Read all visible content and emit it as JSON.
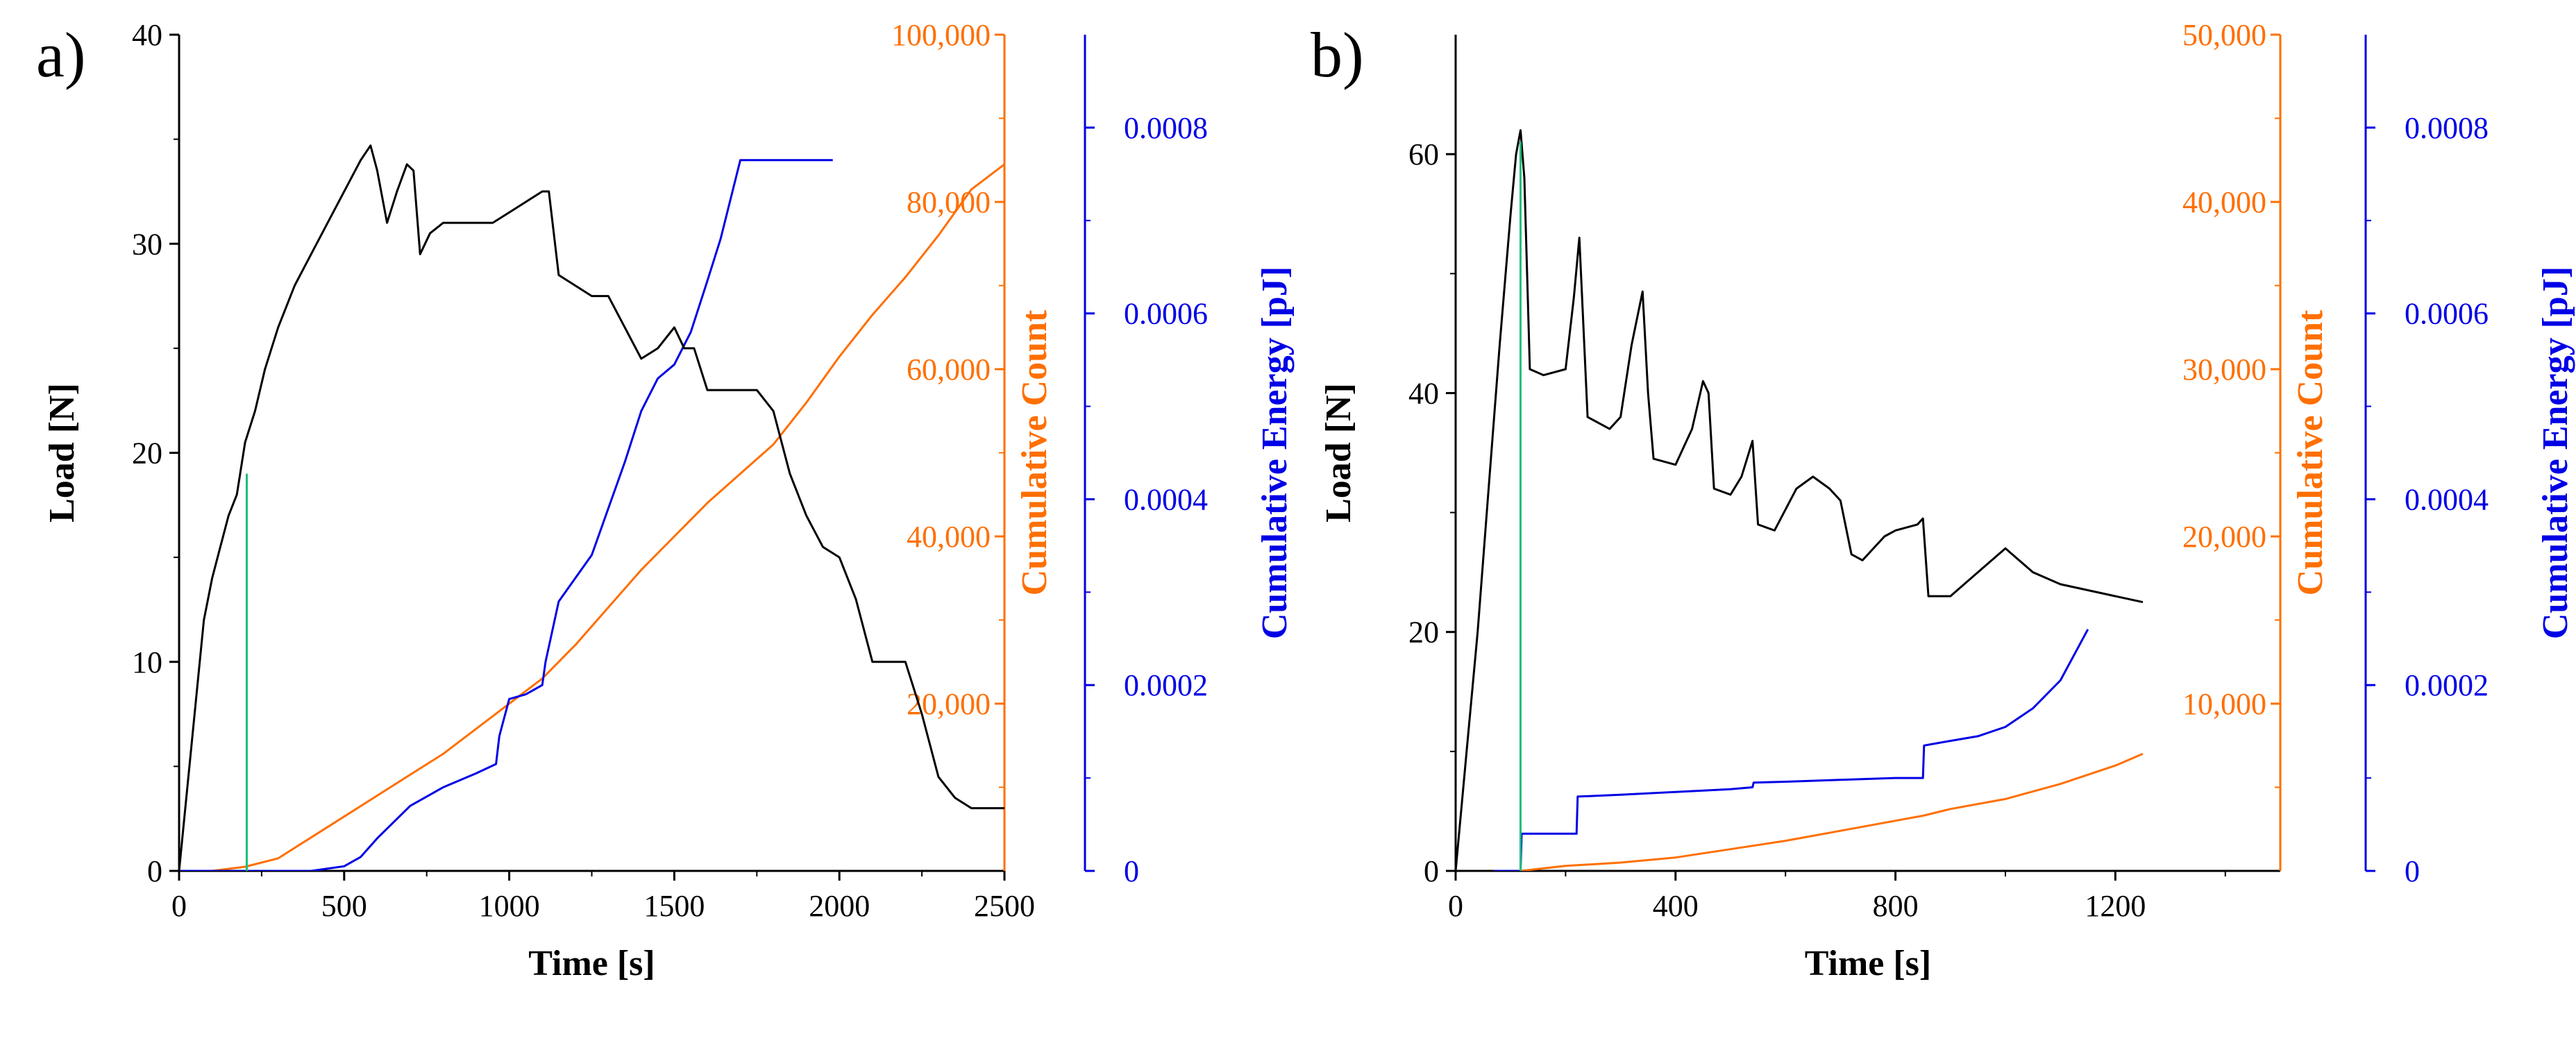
{
  "colors": {
    "load": "#000000",
    "count": "#FF6F00",
    "energy": "#0000E6",
    "onset": "#1BBE7A",
    "axes": "#000000"
  },
  "chart_data": [
    {
      "panel": "a)",
      "type": "line",
      "xlabel": "Time [s]",
      "ylabel_left": "Load [N]",
      "ylabel_right1": "Cumulative Count",
      "ylabel_right2": "Cumulative Energy [pJ]",
      "xlim": [
        0,
        2500
      ],
      "ylim_load": [
        0,
        40
      ],
      "ylim_count": [
        0,
        100000
      ],
      "ylim_energy": [
        0,
        0.0009
      ],
      "x_ticks": [
        "0",
        "500",
        "1000",
        "1500",
        "2000",
        "2500"
      ],
      "load_ticks": [
        "0",
        "10",
        "20",
        "30",
        "40"
      ],
      "count_ticks": [
        "20,000",
        "40,000",
        "60,000",
        "80,000",
        "100,000"
      ],
      "energy_ticks": [
        "0",
        "0.0002",
        "0.0004",
        "0.0006",
        "0.0008"
      ],
      "x_tick_values": [
        0,
        500,
        1000,
        1500,
        2000,
        2500
      ],
      "load_tick_values": [
        0,
        10,
        20,
        30,
        40
      ],
      "count_tick_values": [
        20000,
        40000,
        60000,
        80000,
        100000
      ],
      "energy_tick_values": [
        0,
        0.0002,
        0.0004,
        0.0006,
        0.0008
      ],
      "onset_line": {
        "x": 205,
        "y": 19
      },
      "series": [
        {
          "name": "Load",
          "axis": "load",
          "x": [
            0,
            25,
            50,
            75,
            100,
            125,
            150,
            175,
            200,
            230,
            260,
            300,
            350,
            400,
            450,
            500,
            550,
            580,
            600,
            630,
            660,
            690,
            710,
            730,
            760,
            800,
            850,
            900,
            950,
            1000,
            1050,
            1100,
            1120,
            1150,
            1200,
            1250,
            1300,
            1350,
            1400,
            1450,
            1500,
            1530,
            1560,
            1600,
            1650,
            1700,
            1750,
            1800,
            1850,
            1900,
            1950,
            2000,
            2050,
            2100,
            2150,
            2200,
            2250,
            2300,
            2350,
            2400,
            2450,
            2500
          ],
          "y": [
            0,
            4,
            8,
            12,
            14,
            15.5,
            17,
            18,
            20.5,
            22,
            24,
            26,
            28,
            29.5,
            31,
            32.5,
            34,
            34.7,
            33.5,
            31,
            32.5,
            33.8,
            33.5,
            29.5,
            30.5,
            31,
            31,
            31,
            31,
            31.5,
            32,
            32.5,
            32.5,
            28.5,
            28,
            27.5,
            27.5,
            26,
            24.5,
            25,
            26,
            25,
            25,
            23,
            23,
            23,
            23,
            22,
            19,
            17,
            15.5,
            15,
            13,
            10,
            10,
            10,
            7.5,
            4.5,
            3.5,
            3,
            3,
            3
          ]
        },
        {
          "name": "Cumulative Count",
          "axis": "count",
          "x": [
            0,
            100,
            200,
            300,
            400,
            500,
            600,
            700,
            800,
            900,
            1000,
            1100,
            1200,
            1300,
            1400,
            1500,
            1600,
            1700,
            1800,
            1900,
            2000,
            2100,
            2200,
            2300,
            2400,
            2500
          ],
          "y": [
            0,
            0,
            500,
            1500,
            4000,
            6500,
            9000,
            11500,
            14000,
            17000,
            20000,
            23000,
            27000,
            31500,
            36000,
            40000,
            44000,
            47500,
            51000,
            56000,
            61500,
            66500,
            71000,
            76000,
            81500,
            84500
          ]
        },
        {
          "name": "Cumulative Energy",
          "axis": "energy",
          "x": [
            0,
            300,
            400,
            500,
            550,
            600,
            700,
            800,
            900,
            960,
            970,
            1000,
            1050,
            1100,
            1110,
            1150,
            1200,
            1250,
            1300,
            1350,
            1400,
            1450,
            1500,
            1550,
            1600,
            1640,
            1700,
            1750,
            1800,
            1900,
            1980
          ],
          "y": [
            0,
            0,
            0,
            5e-06,
            1.5e-05,
            3.5e-05,
            7e-05,
            9e-05,
            0.000105,
            0.000115,
            0.000145,
            0.000185,
            0.00019,
            0.0002,
            0.000225,
            0.00029,
            0.000315,
            0.00034,
            0.00039,
            0.00044,
            0.000495,
            0.00053,
            0.000545,
            0.00058,
            0.000635,
            0.00068,
            0.000765,
            0.000765,
            0.000765,
            0.000765,
            0.000765
          ]
        }
      ]
    },
    {
      "panel": "b)",
      "type": "line",
      "xlabel": "Time [s]",
      "ylabel_left": "Load [N]",
      "ylabel_right1": "Cumulative Count",
      "ylabel_right2": "Cumulative Energy [pJ]",
      "xlim": [
        0,
        1500
      ],
      "ylim_load": [
        0,
        70
      ],
      "ylim_count": [
        0,
        50000
      ],
      "ylim_energy": [
        0,
        0.0009
      ],
      "x_ticks": [
        "0",
        "400",
        "800",
        "1200"
      ],
      "load_ticks": [
        "0",
        "20",
        "40",
        "60"
      ],
      "count_ticks": [
        "10,000",
        "20,000",
        "30,000",
        "40,000",
        "50,000"
      ],
      "energy_ticks": [
        "0",
        "0.0002",
        "0.0004",
        "0.0006",
        "0.0008"
      ],
      "x_tick_values": [
        0,
        400,
        800,
        1200
      ],
      "load_tick_values": [
        0,
        20,
        40,
        60
      ],
      "count_tick_values": [
        10000,
        20000,
        30000,
        40000,
        50000
      ],
      "energy_tick_values": [
        0,
        0.0002,
        0.0004,
        0.0006,
        0.0008
      ],
      "onset_line": {
        "x": 118,
        "y": 61
      },
      "series": [
        {
          "name": "Load",
          "axis": "load",
          "x": [
            0,
            20,
            40,
            60,
            80,
            100,
            110,
            118,
            125,
            135,
            160,
            200,
            215,
            225,
            240,
            280,
            300,
            320,
            340,
            350,
            360,
            400,
            430,
            450,
            460,
            470,
            500,
            520,
            540,
            550,
            580,
            620,
            650,
            680,
            700,
            720,
            740,
            780,
            800,
            840,
            850,
            860,
            900,
            950,
            1000,
            1050,
            1100,
            1150,
            1200,
            1250
          ],
          "y": [
            0,
            10,
            20,
            32,
            44,
            55,
            60,
            62,
            58,
            42,
            41.5,
            42,
            48,
            53,
            38,
            37,
            38,
            44,
            48.5,
            40,
            34.5,
            34,
            37,
            41,
            40,
            32,
            31.5,
            33,
            36,
            29,
            28.5,
            32,
            33,
            32,
            31,
            26.5,
            26,
            28,
            28.5,
            29,
            29.5,
            23,
            23,
            25,
            27,
            25,
            24,
            23.5,
            23,
            22.5
          ]
        },
        {
          "name": "Cumulative Count",
          "axis": "count",
          "x": [
            70,
            118,
            200,
            300,
            400,
            500,
            600,
            700,
            800,
            850,
            900,
            1000,
            1100,
            1200,
            1250
          ],
          "y": [
            0,
            0,
            300,
            500,
            800,
            1300,
            1800,
            2400,
            3000,
            3300,
            3700,
            4300,
            5200,
            6300,
            7000
          ]
        },
        {
          "name": "Cumulative Energy",
          "axis": "energy",
          "x": [
            70,
            118,
            120,
            200,
            220,
            222,
            300,
            400,
            500,
            540,
            542,
            600,
            700,
            800,
            850,
            852,
            900,
            950,
            1000,
            1050,
            1100,
            1150
          ],
          "y": [
            0,
            0,
            4e-05,
            4e-05,
            4e-05,
            8e-05,
            8.2e-05,
            8.5e-05,
            8.8e-05,
            9e-05,
            9.5e-05,
            9.6e-05,
            9.8e-05,
            0.0001,
            0.0001,
            0.000135,
            0.00014,
            0.000145,
            0.000155,
            0.000175,
            0.000205,
            0.00026
          ]
        }
      ]
    }
  ]
}
